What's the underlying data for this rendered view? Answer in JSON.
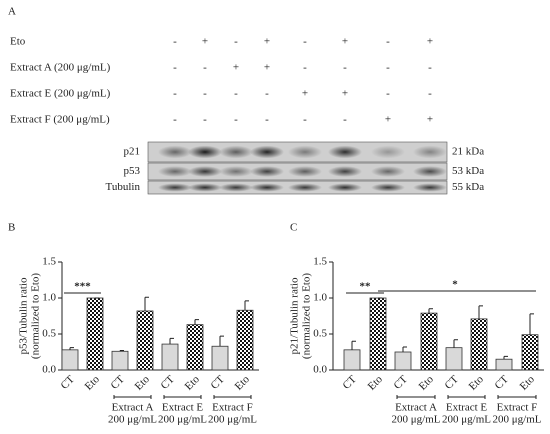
{
  "panel_a": {
    "label": "A",
    "rows": [
      {
        "label": "Eto",
        "signs": [
          "-",
          "+",
          "-",
          "+",
          "-",
          "+",
          "-",
          "+"
        ]
      },
      {
        "label": "Extract A (200 μg/mL)",
        "signs": [
          "-",
          "-",
          "+",
          "+",
          "-",
          "-",
          "-",
          "-"
        ]
      },
      {
        "label": "Extract E (200 μg/mL)",
        "signs": [
          "-",
          "-",
          "-",
          "-",
          "+",
          "+",
          "-",
          "-"
        ]
      },
      {
        "label": "Extract F (200 μg/mL)",
        "signs": [
          "-",
          "-",
          "-",
          "-",
          "-",
          "-",
          "+",
          "+"
        ]
      }
    ],
    "blots": [
      {
        "protein": "p21",
        "size": "21 kDa"
      },
      {
        "protein": "p53",
        "size": "53 kDa"
      },
      {
        "protein": "Tubulin",
        "size": "55 kDa"
      }
    ]
  },
  "chart_data": [
    {
      "type": "bar",
      "panel": "B",
      "y_label": [
        "p53/Tubulin ratio",
        "(normalized to Eto)"
      ],
      "categories": [
        "CT",
        "Eto",
        "CT",
        "Eto",
        "CT",
        "Eto",
        "CT",
        "Eto"
      ],
      "values": [
        0.28,
        1.0,
        0.26,
        0.82,
        0.36,
        0.63,
        0.33,
        0.83
      ],
      "errors": [
        0.03,
        0,
        0.01,
        0.19,
        0.08,
        0.07,
        0.14,
        0.13
      ],
      "bar_styles": [
        "solid",
        "checkered",
        "solid",
        "checkered",
        "solid",
        "checkered",
        "solid",
        "checkered"
      ],
      "color": "#d9d9d9",
      "groups": [
        [
          "Extract A",
          "200 μg/mL"
        ],
        [
          "Extract E",
          "200 μg/mL"
        ],
        [
          "Extract F",
          "200 μg/mL"
        ]
      ],
      "annotations": [
        "***"
      ],
      "ylim": [
        0,
        1.5
      ],
      "yticks": [
        {
          "value": 0,
          "label": "0.0"
        },
        {
          "value": 0.5,
          "label": "0.5"
        },
        {
          "value": 1,
          "label": "1.0"
        },
        {
          "value": 1.5,
          "label": "1.5"
        }
      ]
    },
    {
      "type": "bar",
      "panel": "C",
      "y_label": [
        "p21/Tubulin ratio",
        "(normalized to Eto)"
      ],
      "categories": [
        "CT",
        "Eto",
        "CT",
        "Eto",
        "CT",
        "Eto",
        "CT",
        "Eto"
      ],
      "values": [
        0.28,
        1.0,
        0.25,
        0.79,
        0.31,
        0.71,
        0.15,
        0.49
      ],
      "errors": [
        0.12,
        0,
        0.07,
        0.06,
        0.11,
        0.18,
        0.04,
        0.29
      ],
      "bar_styles": [
        "solid",
        "checkered",
        "solid",
        "checkered",
        "solid",
        "checkered",
        "solid",
        "checkered"
      ],
      "color": "#d9d9d9",
      "groups": [
        [
          "Extract A",
          "200 μg/mL"
        ],
        [
          "Extract E",
          "200 μg/mL"
        ],
        [
          "Extract F",
          "200 μg/mL"
        ]
      ],
      "annotations": [
        "**",
        "*"
      ],
      "ylim": [
        0,
        1.5
      ],
      "yticks": [
        {
          "value": 0,
          "label": "0.0"
        },
        {
          "value": 0.5,
          "label": "0.5"
        },
        {
          "value": 1,
          "label": "1.0"
        },
        {
          "value": 1.5,
          "label": "1.5"
        }
      ]
    }
  ]
}
